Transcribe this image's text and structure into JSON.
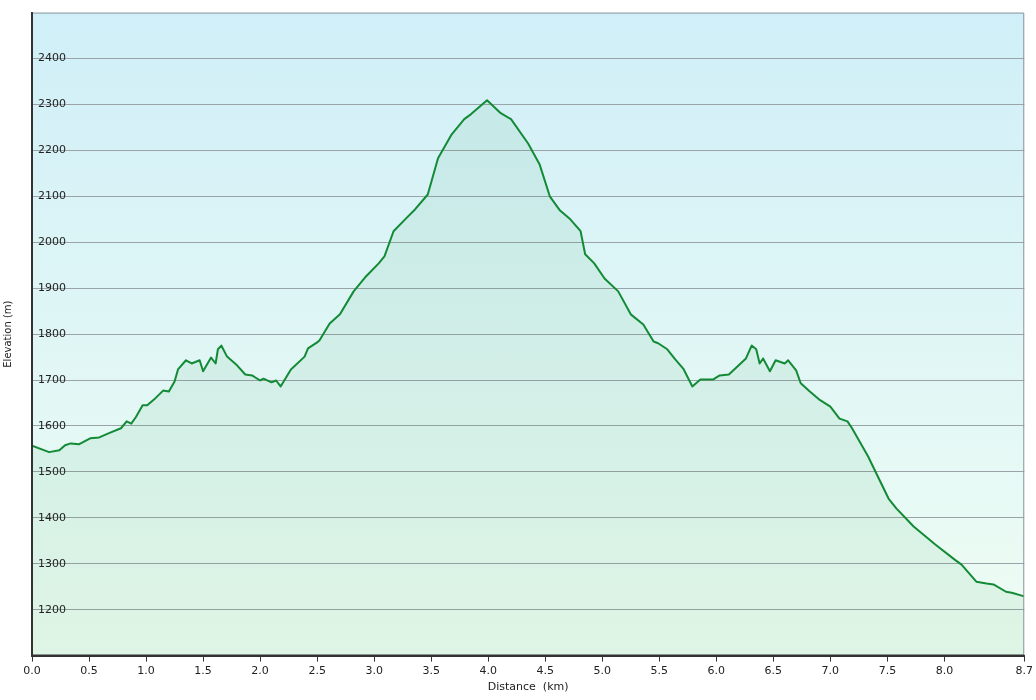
{
  "chart_data": {
    "type": "area",
    "xlabel": "Distance  (km)",
    "ylabel": "Elevation (m)",
    "x": [
      0,
      0.15,
      0.24,
      0.29,
      0.34,
      0.41,
      0.51,
      0.59,
      0.67,
      0.78,
      0.83,
      0.87,
      0.91,
      0.97,
      1.01,
      1.08,
      1.15,
      1.2,
      1.25,
      1.28,
      1.35,
      1.4,
      1.47,
      1.5,
      1.57,
      1.61,
      1.63,
      1.66,
      1.71,
      1.79,
      1.87,
      1.93,
      2.0,
      2.03,
      2.1,
      2.14,
      2.18,
      2.27,
      2.39,
      2.42,
      2.5,
      2.52,
      2.61,
      2.7,
      2.82,
      2.93,
      3.04,
      3.09,
      3.17,
      3.28,
      3.36,
      3.47,
      3.56,
      3.68,
      3.79,
      3.85,
      3.99,
      4.11,
      4.2,
      4.35,
      4.45,
      4.54,
      4.63,
      4.72,
      4.81,
      4.85,
      4.93,
      5.02,
      5.14,
      5.25,
      5.36,
      5.45,
      5.49,
      5.57,
      5.64,
      5.71,
      5.79,
      5.86,
      5.97,
      6.03,
      6.11,
      6.26,
      6.31,
      6.35,
      6.38,
      6.41,
      6.47,
      6.52,
      6.6,
      6.63,
      6.7,
      6.74,
      6.82,
      6.9,
      7.0,
      7.08,
      7.15,
      7.19,
      7.33,
      7.51,
      7.58,
      7.73,
      7.92,
      8.09,
      8.15,
      8.28,
      8.37,
      8.43,
      8.54,
      8.59,
      8.7
    ],
    "series": [
      {
        "color": "#138a36",
        "values": [
          1557,
          1543,
          1547,
          1558,
          1562,
          1560,
          1573,
          1575,
          1584,
          1595,
          1610,
          1605,
          1619,
          1645,
          1645,
          1660,
          1677,
          1675,
          1697,
          1723,
          1743,
          1736,
          1743,
          1719,
          1749,
          1736,
          1767,
          1775,
          1751,
          1734,
          1712,
          1710,
          1699,
          1703,
          1695,
          1699,
          1686,
          1723,
          1751,
          1769,
          1782,
          1786,
          1823,
          1843,
          1893,
          1926,
          1954,
          1969,
          2024,
          2052,
          2072,
          2104,
          2183,
          2235,
          2268,
          2279,
          2309,
          2281,
          2268,
          2215,
          2170,
          2100,
          2069,
          2050,
          2024,
          1974,
          1954,
          1921,
          1893,
          1843,
          1821,
          1784,
          1780,
          1767,
          1745,
          1725,
          1686,
          1701,
          1701,
          1710,
          1712,
          1747,
          1775,
          1767,
          1736,
          1747,
          1719,
          1743,
          1736,
          1743,
          1721,
          1693,
          1675,
          1658,
          1642,
          1616,
          1610,
          1595,
          1534,
          1442,
          1420,
          1381,
          1342,
          1309,
          1298,
          1261,
          1257,
          1255,
          1239,
          1237,
          1229
        ]
      }
    ],
    "xlim": [
      0,
      8.7
    ],
    "xticks": [
      {
        "value": 0,
        "label": "0.0"
      },
      0.5,
      {
        "value": 1,
        "label": "1.0"
      },
      1.5,
      {
        "value": 2,
        "label": "2.0"
      },
      2.5,
      {
        "value": 3,
        "label": "3.0"
      },
      3.5,
      {
        "value": 4,
        "label": "4.0"
      },
      4.5,
      {
        "value": 5,
        "label": "5.0"
      },
      5.5,
      {
        "value": 6,
        "label": "6.0"
      },
      6.5,
      {
        "value": 7,
        "label": "7.0"
      },
      7.5,
      {
        "value": 8,
        "label": "8.0"
      },
      8.7
    ],
    "ylim": [
      1100,
      2500
    ],
    "yticks": [
      1200,
      1300,
      1400,
      1500,
      1600,
      1700,
      1800,
      1900,
      2000,
      2100,
      2200,
      2300,
      2400
    ],
    "grid": "y",
    "marker": "none",
    "line_style": "solid",
    "legend": false
  }
}
